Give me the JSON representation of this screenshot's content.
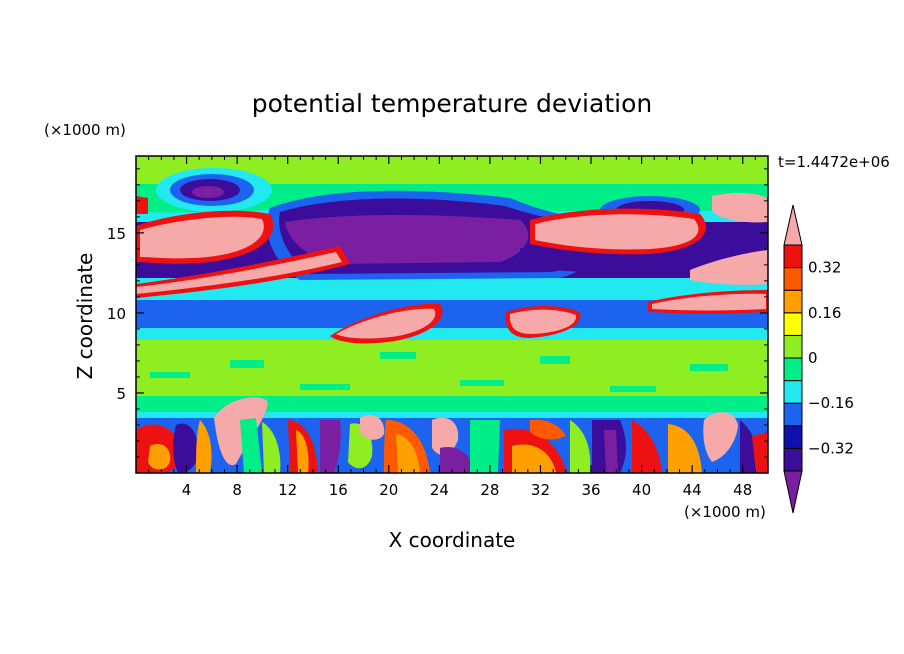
{
  "chart_data": {
    "type": "heatmap",
    "title": "potential temperature deviation",
    "xlabel": "X coordinate",
    "ylabel": "Z coordinate",
    "x_unit": "(×1000 m)",
    "y_unit": "(×1000 m)",
    "time_label": "t=1.4472e+06",
    "xlim": [
      0,
      50
    ],
    "ylim": [
      0,
      19.8
    ],
    "x_ticks": [
      4,
      8,
      12,
      16,
      20,
      24,
      28,
      32,
      36,
      40,
      44,
      48
    ],
    "y_ticks": [
      5,
      10,
      15
    ],
    "colorbar": {
      "levels": [
        -0.4,
        -0.32,
        -0.24,
        -0.16,
        -0.08,
        0,
        0.08,
        0.16,
        0.24,
        0.32,
        0.4
      ],
      "tick_labels": [
        "0.32",
        "0.16",
        "0",
        "−0.16",
        "−0.32"
      ],
      "colors": [
        "#7a1fa2",
        "#3c0d9a",
        "#1010b0",
        "#1c64f0",
        "#22e8f0",
        "#00ee88",
        "#8eee22",
        "#ffff00",
        "#ffa000",
        "#ff5a00",
        "#ee1111",
        "#f5a9a9"
      ]
    },
    "bands": [
      {
        "z": [
          0,
          3.2
        ],
        "value": "mixed, strong vertical plumes of ±0.4 values"
      },
      {
        "z": [
          3.2,
          4.0
        ],
        "value": -0.1
      },
      {
        "z": [
          4.0,
          8.5
        ],
        "value": 0.04
      },
      {
        "z": [
          8.5,
          9.5
        ],
        "value": -0.12
      },
      {
        "z": [
          9.5,
          10.6
        ],
        "value": -0.25
      },
      {
        "z": [
          10.6,
          12.0
        ],
        "value": -0.12
      },
      {
        "z": [
          12.0,
          14.0
        ],
        "value": "mixed -0.3 to 0.4"
      },
      {
        "z": [
          14.0,
          17.3
        ],
        "value": "mixed -0.4 to 0.4"
      },
      {
        "z": [
          17.3,
          19.8
        ],
        "value": 0.05
      }
    ]
  }
}
